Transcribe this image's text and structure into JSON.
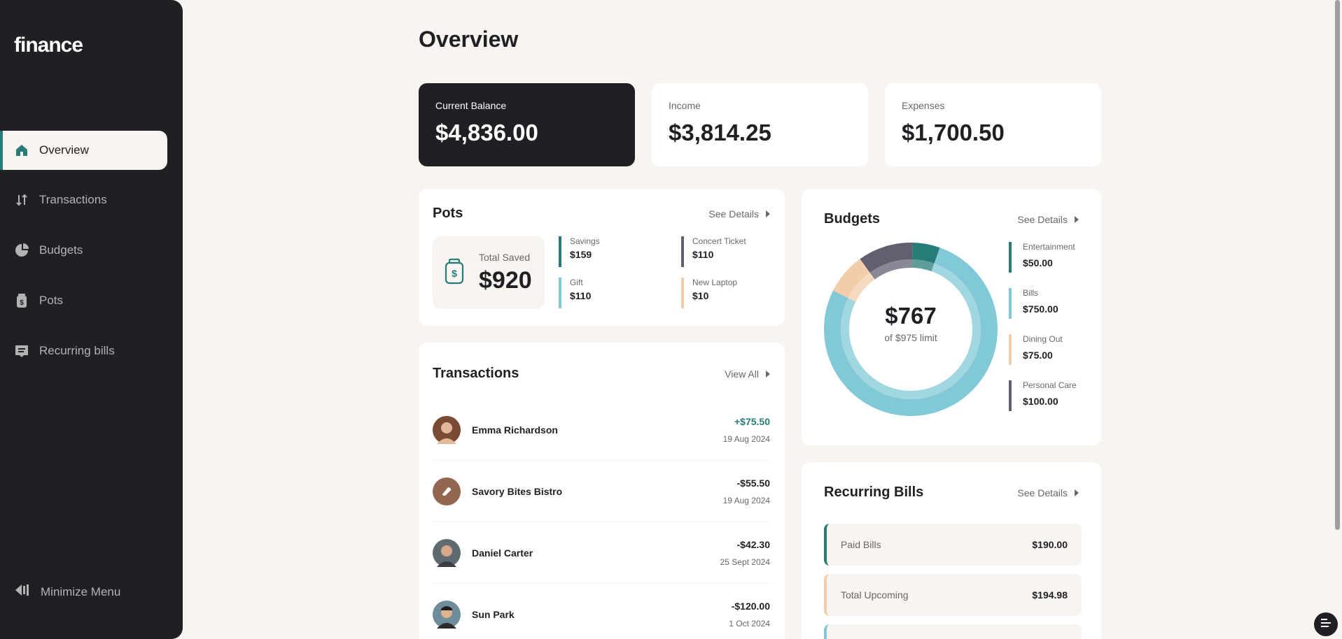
{
  "app": {
    "logo": "finance"
  },
  "sidebar": {
    "items": [
      {
        "label": "Overview",
        "icon": "home-icon"
      },
      {
        "label": "Transactions",
        "icon": "arrows-icon"
      },
      {
        "label": "Budgets",
        "icon": "pie-icon"
      },
      {
        "label": "Pots",
        "icon": "jar-icon"
      },
      {
        "label": "Recurring bills",
        "icon": "receipt-icon"
      }
    ],
    "minimize": "Minimize Menu"
  },
  "page": {
    "title": "Overview"
  },
  "stats": {
    "balance": {
      "label": "Current Balance",
      "value": "$4,836.00"
    },
    "income": {
      "label": "Income",
      "value": "$3,814.25"
    },
    "expenses": {
      "label": "Expenses",
      "value": "$1,700.50"
    }
  },
  "pots": {
    "title": "Pots",
    "see": "See Details",
    "total_label": "Total Saved",
    "total_value": "$920",
    "items": [
      {
        "name": "Savings",
        "value": "$159",
        "color": "#277C78"
      },
      {
        "name": "Concert Ticket",
        "value": "$110",
        "color": "#626070"
      },
      {
        "name": "Gift",
        "value": "$110",
        "color": "#82C9D7"
      },
      {
        "name": "New Laptop",
        "value": "$10",
        "color": "#F2CDAC"
      }
    ]
  },
  "transactions": {
    "title": "Transactions",
    "see": "View All",
    "rows": [
      {
        "name": "Emma Richardson",
        "amount": "+$75.50",
        "date": "19 Aug 2024",
        "positive": true
      },
      {
        "name": "Savory Bites Bistro",
        "amount": "-$55.50",
        "date": "19 Aug 2024",
        "positive": false
      },
      {
        "name": "Daniel Carter",
        "amount": "-$42.30",
        "date": "25 Sept 2024",
        "positive": false
      },
      {
        "name": "Sun Park",
        "amount": "-$120.00",
        "date": "1 Oct 2024",
        "positive": false
      }
    ]
  },
  "budgets": {
    "title": "Budgets",
    "see": "See Details",
    "center_value": "$767",
    "center_sub": "of $975 limit",
    "items": [
      {
        "name": "Entertainment",
        "value": "$50.00",
        "amount": 50,
        "color": "#277C78"
      },
      {
        "name": "Bills",
        "value": "$750.00",
        "amount": 750,
        "color": "#82C9D7"
      },
      {
        "name": "Dining Out",
        "value": "$75.00",
        "amount": 75,
        "color": "#F2CDAC"
      },
      {
        "name": "Personal Care",
        "value": "$100.00",
        "amount": 100,
        "color": "#626070"
      }
    ]
  },
  "recurring": {
    "title": "Recurring Bills",
    "see": "See Details",
    "rows": [
      {
        "name": "Paid Bills",
        "value": "$190.00",
        "color": "#277C78"
      },
      {
        "name": "Total Upcoming",
        "value": "$194.98",
        "color": "#F2CDAC"
      }
    ]
  }
}
